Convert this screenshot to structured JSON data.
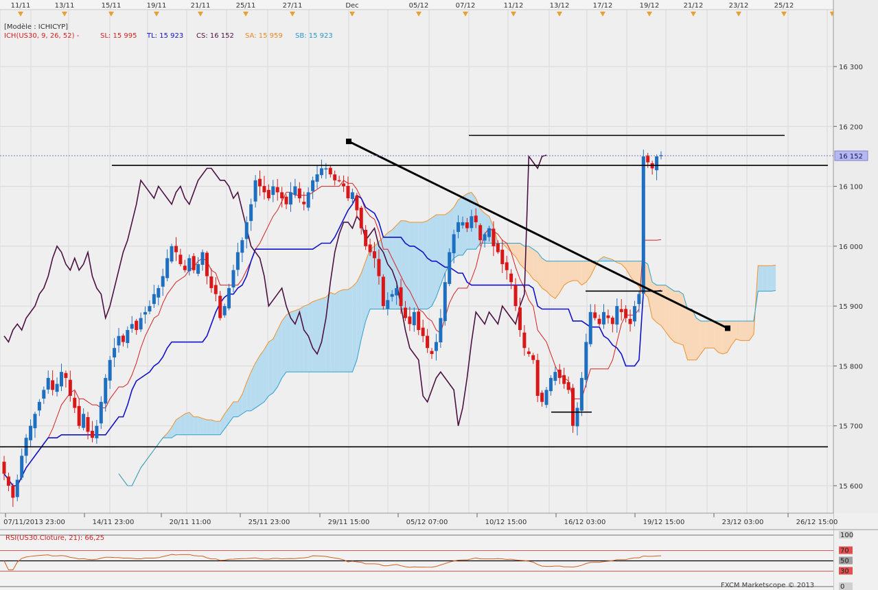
{
  "header": {
    "model_label": "[Modèle : ICHICYP]",
    "ichimoku_label": "ICH(US30, 9, 26, 52) -",
    "sl": "SL: 15 995",
    "tl": "TL: 15 923",
    "cs": "CS: 16 152",
    "sa": "SA: 15 959",
    "sb": "SB: 15 923"
  },
  "top_dates": [
    "11/11",
    "13/11",
    "15/11",
    "19/11",
    "21/11",
    "25/11",
    "27/11",
    "Dec",
    "05/12",
    "07/12",
    "11/12",
    "13/12",
    "17/12",
    "19/12",
    "21/12",
    "23/12",
    "25/12"
  ],
  "bottom_axis": [
    "07/11/2013 23:00",
    "14/11 23:00",
    "20/11 11:00",
    "25/11 23:00",
    "29/11 15:00",
    "05/12 07:00",
    "10/12 15:00",
    "16/12 03:00",
    "19/12 15:00",
    "23/12 03:00",
    "26/12 15:00"
  ],
  "price_axis": [
    "16 300",
    "16 200",
    "16 100",
    "16 000",
    "15 900",
    "15 800",
    "15 700",
    "15 600"
  ],
  "current_price": "16 152",
  "rsi": {
    "label": "RSI(US30.Cloture, 21): 66,25",
    "levels": [
      "100",
      "70",
      "50",
      "30",
      "0"
    ],
    "current": 66.25
  },
  "footer": "FXCM Marketscope © 2013",
  "colors": {
    "sl": "#d42020",
    "tl": "#1010c8",
    "cs": "#4a1040",
    "sa": "#f0902a",
    "sb": "#2aa0d0",
    "cloud_bull": "#b8dcef",
    "cloud_bear": "#f8d8b8",
    "candle_up": "#1f6fc0",
    "candle_down": "#d81818",
    "price_tag": "#b8b8f0"
  },
  "chart_data": {
    "type": "candlestick",
    "symbol": "US30",
    "ylim": [
      15570,
      16380
    ],
    "price_ticks": [
      15600,
      15700,
      15800,
      15900,
      16000,
      16100,
      16200,
      16300
    ],
    "close": [
      15620,
      15600,
      15580,
      15610,
      15650,
      15680,
      15700,
      15720,
      15740,
      15760,
      15780,
      15760,
      15770,
      15790,
      15780,
      15750,
      15730,
      15700,
      15720,
      15690,
      15680,
      15700,
      15740,
      15780,
      15810,
      15830,
      15850,
      15840,
      15860,
      15870,
      15860,
      15880,
      15890,
      15900,
      15920,
      15930,
      15950,
      15980,
      16000,
      15990,
      15970,
      15960,
      15980,
      15960,
      15970,
      15990,
      15950,
      15930,
      15920,
      15880,
      15900,
      15930,
      15960,
      15990,
      16010,
      16040,
      16070,
      16110,
      16100,
      16090,
      16080,
      16100,
      16090,
      16080,
      16070,
      16090,
      16100,
      16080,
      16070,
      16090,
      16110,
      16120,
      16130,
      16130,
      16120,
      16110,
      16110,
      16100,
      16080,
      16090,
      16060,
      16030,
      16000,
      15990,
      15980,
      15950,
      15900,
      15910,
      15920,
      15930,
      15900,
      15880,
      15870,
      15890,
      15860,
      15850,
      15830,
      15820,
      15840,
      15880,
      15940,
      15990,
      16020,
      16040,
      16040,
      16030,
      16050,
      16040,
      16010,
      16020,
      16030,
      16000,
      15990,
      15970,
      15960,
      15940,
      15900,
      15860,
      15830,
      15820,
      15810,
      15750,
      15740,
      15760,
      15780,
      15790,
      15780,
      15770,
      15760,
      15700,
      15730,
      15780,
      15840,
      15890,
      15880,
      15870,
      15890,
      15880,
      15870,
      15900,
      15890,
      15880,
      15870,
      15900,
      15920,
      16150,
      16140,
      16130,
      16150,
      16152
    ],
    "ichimoku": {
      "tenkan_sen": 15995,
      "kijun_sen": 15923,
      "chikou_span": 16152,
      "senkou_a": 15959,
      "senkou_b": 15923
    },
    "trendlines": [
      {
        "from": [
          "29/11 15:00",
          16175
        ],
        "to": [
          "23/12 03:00",
          15863
        ]
      }
    ],
    "horizontal_levels": [
      16185,
      16135,
      15925,
      15723,
      15665
    ],
    "rsi_levels": [
      100,
      70,
      50,
      30,
      0
    ],
    "rsi_last": 66.25
  }
}
